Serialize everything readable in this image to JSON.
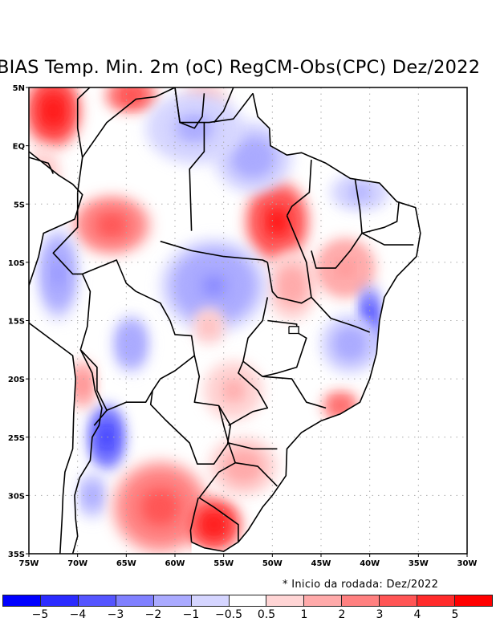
{
  "title": "BIAS Temp. Min. 2m (oC) RegCM-Obs(CPC) Dez/2022",
  "note": "* Inicio da rodada: Dez/2022",
  "chart_data": {
    "type": "heatmap",
    "title": "BIAS Temp. Min. 2m (oC) RegCM-Obs(CPC) Dez/2022",
    "xlabel": "",
    "ylabel": "",
    "xlim": [
      -75,
      -30
    ],
    "ylim": [
      -35,
      5
    ],
    "grid": true,
    "x_ticks": [
      {
        "value": -75,
        "label": "75W"
      },
      {
        "value": -70,
        "label": "70W"
      },
      {
        "value": -65,
        "label": "65W"
      },
      {
        "value": -60,
        "label": "60W"
      },
      {
        "value": -55,
        "label": "55W"
      },
      {
        "value": -50,
        "label": "50W"
      },
      {
        "value": -45,
        "label": "45W"
      },
      {
        "value": -40,
        "label": "40W"
      },
      {
        "value": -35,
        "label": "35W"
      },
      {
        "value": -30,
        "label": "30W"
      }
    ],
    "y_ticks": [
      {
        "value": 5,
        "label": "5N"
      },
      {
        "value": 0,
        "label": "EQ"
      },
      {
        "value": -5,
        "label": "5S"
      },
      {
        "value": -10,
        "label": "10S"
      },
      {
        "value": -15,
        "label": "15S"
      },
      {
        "value": -20,
        "label": "20S"
      },
      {
        "value": -25,
        "label": "25S"
      },
      {
        "value": -30,
        "label": "30S"
      },
      {
        "value": -35,
        "label": "35S"
      }
    ],
    "colorbar": {
      "colors": [
        "#0000FF",
        "#2B2BFF",
        "#5555FF",
        "#8080FF",
        "#AAAAFF",
        "#D5D5FF",
        "#FFFFFF",
        "#FFD5D5",
        "#FFAAAA",
        "#FF8080",
        "#FF5555",
        "#FF2B2B",
        "#FF0000"
      ],
      "levels": [
        -5,
        -4,
        -3,
        -2,
        -1,
        -0.5,
        0.5,
        1,
        2,
        3,
        4,
        5
      ],
      "labels": [
        "−5",
        "−4",
        "−3",
        "−2",
        "−1",
        "−0.5",
        "0.5",
        "1",
        "2",
        "3",
        "4",
        "5"
      ]
    },
    "bias_blobs": [
      {
        "lon": -72.5,
        "lat": 3.0,
        "rlon": 2.8,
        "rlat": 3.2,
        "value": 5.5
      },
      {
        "lon": -64.5,
        "lat": 4.3,
        "rlon": 2.6,
        "rlat": 1.3,
        "value": 4.5
      },
      {
        "lon": -57.0,
        "lat": 4.0,
        "rlon": 2.2,
        "rlat": 1.3,
        "value": 1.2
      },
      {
        "lon": -66.5,
        "lat": -6.8,
        "rlon": 4.0,
        "rlat": 2.5,
        "value": 3.5
      },
      {
        "lon": -73.5,
        "lat": -3.0,
        "rlon": 1.6,
        "rlat": 3.0,
        "value": 1.2
      },
      {
        "lon": -49.5,
        "lat": -6.5,
        "rlon": 3.2,
        "rlat": 3.5,
        "value": 5.3
      },
      {
        "lon": -48.0,
        "lat": -12.0,
        "rlon": 2.5,
        "rlat": 3.0,
        "value": 1.5
      },
      {
        "lon": -42.5,
        "lat": -10.5,
        "rlon": 3.0,
        "rlat": 2.5,
        "value": 2.2
      },
      {
        "lon": -52.0,
        "lat": -1.0,
        "rlon": 4.0,
        "rlat": 3.0,
        "value": -1.5
      },
      {
        "lon": -56.0,
        "lat": -12.0,
        "rlon": 5.5,
        "rlat": 4.0,
        "value": -2.0
      },
      {
        "lon": -58.0,
        "lat": 1.5,
        "rlon": 5.0,
        "rlat": 3.0,
        "value": -1.2
      },
      {
        "lon": -41.0,
        "lat": -4.0,
        "rlon": 3.0,
        "rlat": 1.5,
        "value": -1.2
      },
      {
        "lon": -40.0,
        "lat": -15.0,
        "rlon": 1.0,
        "rlat": 3.0,
        "value": -4.5
      },
      {
        "lon": -42.0,
        "lat": -17.0,
        "rlon": 3.0,
        "rlat": 2.5,
        "value": -1.5
      },
      {
        "lon": -72.0,
        "lat": -11.0,
        "rlon": 2.0,
        "rlat": 4.0,
        "value": -2.0
      },
      {
        "lon": -64.5,
        "lat": -17.0,
        "rlon": 1.8,
        "rlat": 2.5,
        "value": -1.8
      },
      {
        "lon": -67.0,
        "lat": -25.0,
        "rlon": 1.8,
        "rlat": 2.8,
        "value": -4.5
      },
      {
        "lon": -68.5,
        "lat": -30.0,
        "rlon": 1.4,
        "rlat": 2.0,
        "value": -1.5
      },
      {
        "lon": -61.5,
        "lat": -31.0,
        "rlon": 5.0,
        "rlat": 4.0,
        "value": 3.5
      },
      {
        "lon": -56.0,
        "lat": -32.5,
        "rlon": 2.8,
        "rlat": 2.3,
        "value": 5.5
      },
      {
        "lon": -53.0,
        "lat": -27.5,
        "rlon": 3.5,
        "rlat": 2.5,
        "value": 1.5
      },
      {
        "lon": -54.0,
        "lat": -21.0,
        "rlon": 3.0,
        "rlat": 2.5,
        "value": 1.3
      },
      {
        "lon": -43.0,
        "lat": -22.3,
        "rlon": 1.8,
        "rlat": 1.2,
        "value": 3.5
      },
      {
        "lon": -69.5,
        "lat": -20.5,
        "rlon": 1.2,
        "rlat": 2.0,
        "value": 2.5
      },
      {
        "lon": -56.5,
        "lat": -15.5,
        "rlon": 1.5,
        "rlat": 1.5,
        "value": 1.2
      }
    ]
  },
  "map": {
    "boundaries": [
      {
        "name": "south-america-west-coast",
        "points": [
          [
            -75,
            -0.5
          ],
          [
            -73.5,
            -1.5
          ],
          [
            -72,
            -2.5
          ],
          [
            -70.5,
            -3.3
          ],
          [
            -69.5,
            -4.2
          ],
          [
            -70.3,
            -6.3
          ],
          [
            -73.5,
            -7.5
          ],
          [
            -74,
            -9.5
          ],
          [
            -75,
            -12
          ],
          [
            -75,
            -15.2
          ],
          [
            -70.5,
            -18
          ],
          [
            -70.2,
            -20
          ],
          [
            -70.4,
            -23
          ],
          [
            -70.5,
            -26
          ],
          [
            -71.3,
            -28
          ],
          [
            -71.5,
            -30
          ],
          [
            -71.6,
            -32
          ],
          [
            -71.8,
            -35
          ]
        ]
      },
      {
        "name": "andes-border",
        "points": [
          [
            -69.7,
            -17.5
          ],
          [
            -68.5,
            -19.5
          ],
          [
            -68.2,
            -21
          ],
          [
            -67.5,
            -22.5
          ],
          [
            -67.8,
            -24
          ],
          [
            -68.5,
            -25
          ],
          [
            -68.7,
            -27
          ],
          [
            -69.8,
            -28.5
          ],
          [
            -70.3,
            -30
          ],
          [
            -70.2,
            -32
          ],
          [
            -70,
            -33.5
          ],
          [
            -70.5,
            -35
          ]
        ]
      },
      {
        "name": "east-coast",
        "points": [
          [
            -52,
            4.5
          ],
          [
            -51.5,
            2.5
          ],
          [
            -50.3,
            1.5
          ],
          [
            -50.2,
            0
          ],
          [
            -48.5,
            -0.8
          ],
          [
            -47,
            -0.6
          ],
          [
            -44.5,
            -1.5
          ],
          [
            -42,
            -2.8
          ],
          [
            -39,
            -3.2
          ],
          [
            -37.2,
            -4.8
          ],
          [
            -35.3,
            -5.3
          ],
          [
            -34.8,
            -7.5
          ],
          [
            -35.2,
            -9.5
          ],
          [
            -37.2,
            -11.2
          ],
          [
            -38.5,
            -13
          ],
          [
            -39,
            -15
          ],
          [
            -39.3,
            -17.8
          ],
          [
            -40,
            -20
          ],
          [
            -41,
            -22
          ],
          [
            -43,
            -23
          ],
          [
            -45,
            -23.6
          ],
          [
            -47,
            -24.6
          ],
          [
            -48.5,
            -26
          ],
          [
            -48.6,
            -28.3
          ],
          [
            -50,
            -30
          ],
          [
            -51,
            -31
          ],
          [
            -52.5,
            -33
          ],
          [
            -53.5,
            -34
          ],
          [
            -55,
            -34.8
          ],
          [
            -57,
            -34.5
          ],
          [
            -58.3,
            -34
          ]
        ]
      },
      {
        "name": "brazil-west",
        "points": [
          [
            -70,
            -4
          ],
          [
            -70,
            -7
          ],
          [
            -72.5,
            -9.2
          ],
          [
            -70.5,
            -11
          ],
          [
            -69.5,
            -11
          ],
          [
            -66,
            -9.8
          ],
          [
            -65,
            -11.8
          ],
          [
            -64,
            -12.5
          ],
          [
            -61.5,
            -13.5
          ],
          [
            -60.5,
            -15
          ],
          [
            -60,
            -16.2
          ],
          [
            -58.3,
            -16.3
          ],
          [
            -58,
            -18
          ],
          [
            -57.5,
            -19.8
          ],
          [
            -58,
            -22
          ],
          [
            -55.5,
            -22.3
          ],
          [
            -55,
            -24
          ],
          [
            -54.5,
            -25.5
          ],
          [
            -53.8,
            -27.2
          ],
          [
            -55.5,
            -28
          ],
          [
            -57.5,
            -30.2
          ],
          [
            -56,
            -31
          ],
          [
            -53.5,
            -32.5
          ],
          [
            -53.5,
            -34
          ]
        ]
      },
      {
        "name": "brazil-north",
        "points": [
          [
            -70,
            -4
          ],
          [
            -69.5,
            -1
          ],
          [
            -67,
            2
          ],
          [
            -64,
            4
          ],
          [
            -62,
            4.2
          ],
          [
            -60,
            5
          ],
          [
            -59.5,
            2
          ],
          [
            -56.5,
            2
          ],
          [
            -54,
            2.3
          ],
          [
            -52,
            4.5
          ]
        ]
      },
      {
        "name": "colombia-venezuela",
        "points": [
          [
            -69.5,
            -1
          ],
          [
            -70,
            1.5
          ],
          [
            -70,
            4
          ],
          [
            -67.5,
            6
          ]
        ]
      },
      {
        "name": "guyanas",
        "points": [
          [
            -60,
            5
          ],
          [
            -59.5,
            2
          ],
          [
            -58,
            1.5
          ],
          [
            -57.2,
            2.5
          ],
          [
            -57,
            4.5
          ]
        ]
      },
      {
        "name": "suriname-fg",
        "points": [
          [
            -56,
            2
          ],
          [
            -55,
            3
          ],
          [
            -54,
            5
          ]
        ]
      },
      {
        "name": "peru-ecuador",
        "points": [
          [
            -75,
            -1
          ],
          [
            -73,
            -1.5
          ],
          [
            -72.5,
            -2.4
          ]
        ]
      },
      {
        "name": "bolivia",
        "points": [
          [
            -69.5,
            -11
          ],
          [
            -68.7,
            -12.5
          ],
          [
            -69,
            -15.5
          ],
          [
            -69.7,
            -17.5
          ],
          [
            -68,
            -19
          ],
          [
            -68,
            -21
          ],
          [
            -67,
            -22.7
          ],
          [
            -65,
            -22
          ],
          [
            -63,
            -22
          ],
          [
            -62.3,
            -21
          ],
          [
            -61.5,
            -20
          ],
          [
            -60,
            -19.3
          ],
          [
            -58,
            -18
          ]
        ]
      },
      {
        "name": "paraguay",
        "points": [
          [
            -62.3,
            -21
          ],
          [
            -62.5,
            -22.2
          ],
          [
            -61,
            -23.5
          ],
          [
            -58.5,
            -25.5
          ],
          [
            -57.7,
            -27.3
          ],
          [
            -56,
            -27.3
          ],
          [
            -54.6,
            -25.6
          ],
          [
            -54.3,
            -24
          ],
          [
            -55.5,
            -22.3
          ]
        ]
      },
      {
        "name": "argentina-chile-north",
        "points": [
          [
            -67,
            -22.7
          ],
          [
            -68.3,
            -24
          ]
        ]
      },
      {
        "name": "uruguay-argentina",
        "points": [
          [
            -58.3,
            -34
          ],
          [
            -58.4,
            -33
          ],
          [
            -58,
            -31.5
          ],
          [
            -57.6,
            -30.2
          ]
        ]
      },
      {
        "name": "state-pa-am",
        "points": [
          [
            -58.3,
            -7.3
          ],
          [
            -58.5,
            -2
          ],
          [
            -57,
            -0.5
          ],
          [
            -57,
            2
          ]
        ]
      },
      {
        "name": "state-mt-north",
        "points": [
          [
            -61.5,
            -8.2
          ],
          [
            -58.3,
            -9
          ],
          [
            -55,
            -9.5
          ],
          [
            -51,
            -9.8
          ],
          [
            -50.5,
            -10
          ]
        ]
      },
      {
        "name": "state-to",
        "points": [
          [
            -50.5,
            -10
          ],
          [
            -50,
            -12.5
          ],
          [
            -49.5,
            -13
          ],
          [
            -47,
            -13.5
          ],
          [
            -46,
            -13
          ],
          [
            -46.5,
            -10
          ],
          [
            -47.5,
            -8
          ],
          [
            -48.5,
            -6
          ]
        ]
      },
      {
        "name": "state-ma-pi",
        "points": [
          [
            -46,
            -1.2
          ],
          [
            -46.2,
            -4
          ],
          [
            -48,
            -5.2
          ],
          [
            -48.5,
            -6
          ]
        ]
      },
      {
        "name": "state-pi",
        "points": [
          [
            -41.5,
            -2.9
          ],
          [
            -41,
            -5.5
          ],
          [
            -40.8,
            -7.5
          ],
          [
            -42,
            -9
          ],
          [
            -43.5,
            -10.5
          ],
          [
            -45.5,
            -10.5
          ],
          [
            -46,
            -9
          ]
        ]
      },
      {
        "name": "state-ce",
        "points": [
          [
            -40.8,
            -7.5
          ],
          [
            -38.5,
            -7
          ],
          [
            -37.2,
            -6.5
          ],
          [
            -37,
            -4.8
          ]
        ]
      },
      {
        "name": "state-pe",
        "points": [
          [
            -40.8,
            -7.5
          ],
          [
            -38.5,
            -8.5
          ],
          [
            -35.5,
            -8.5
          ]
        ]
      },
      {
        "name": "state-ba",
        "points": [
          [
            -46,
            -13
          ],
          [
            -44,
            -14.8
          ],
          [
            -41.5,
            -15.5
          ],
          [
            -40,
            -16
          ]
        ]
      },
      {
        "name": "state-mg-go",
        "points": [
          [
            -50.5,
            -15
          ],
          [
            -47.5,
            -15.3
          ],
          [
            -47.5,
            -16
          ],
          [
            -46.5,
            -16.5
          ],
          [
            -47.5,
            -19
          ],
          [
            -49.5,
            -19.5
          ],
          [
            -51,
            -19.8
          ],
          [
            -53,
            -18.5
          ]
        ]
      },
      {
        "name": "state-ms",
        "points": [
          [
            -53,
            -18.5
          ],
          [
            -53.5,
            -19.5
          ],
          [
            -51.5,
            -21
          ],
          [
            -50.5,
            -22.5
          ],
          [
            -52,
            -22.8
          ],
          [
            -54.5,
            -24
          ]
        ]
      },
      {
        "name": "state-sp-mg",
        "points": [
          [
            -51,
            -19.8
          ],
          [
            -48,
            -20
          ],
          [
            -46.5,
            -22
          ],
          [
            -44.5,
            -22.5
          ]
        ]
      },
      {
        "name": "state-pr",
        "points": [
          [
            -54.5,
            -25.5
          ],
          [
            -52,
            -26
          ],
          [
            -49.5,
            -26
          ]
        ]
      },
      {
        "name": "state-sc",
        "points": [
          [
            -53.8,
            -27.2
          ],
          [
            -51.5,
            -27.5
          ],
          [
            -49.5,
            -29.2
          ]
        ]
      },
      {
        "name": "state-go-west",
        "points": [
          [
            -53,
            -18.5
          ],
          [
            -52.5,
            -16.5
          ],
          [
            -51,
            -15
          ],
          [
            -50.5,
            -13
          ]
        ]
      }
    ],
    "df_outline": [
      [
        -48.3,
        -15.5
      ],
      [
        -47.3,
        -15.5
      ],
      [
        -47.3,
        -16.1
      ],
      [
        -48.3,
        -16.1
      ],
      [
        -48.3,
        -15.5
      ]
    ]
  }
}
